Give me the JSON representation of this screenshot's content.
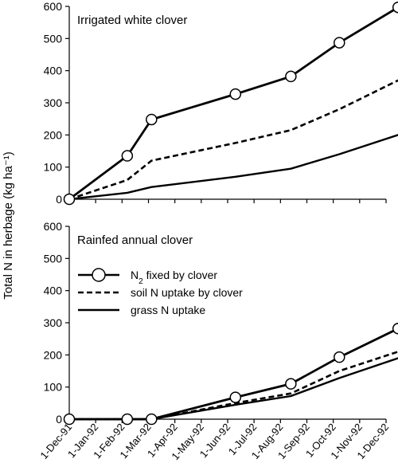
{
  "chart_data": [
    {
      "type": "line",
      "title": "Irrigated white clover",
      "ylabel": "Total N in herbage (kg ha⁻¹)",
      "ylim": [
        0,
        600
      ],
      "yticks": [
        0,
        100,
        200,
        300,
        400,
        500,
        600
      ],
      "xlim": [
        "1-Dec-91",
        "1-Dec-92"
      ],
      "grid": false,
      "series": [
        {
          "name": "N2 fixed by clover",
          "style": "solid-circle",
          "points": [
            {
              "date": "1991-12-01",
              "value": 0
            },
            {
              "date": "1992-02-06",
              "value": 135
            },
            {
              "date": "1992-03-05",
              "value": 248
            },
            {
              "date": "1992-06-10",
              "value": 327
            },
            {
              "date": "1992-08-13",
              "value": 382
            },
            {
              "date": "1992-10-08",
              "value": 487
            },
            {
              "date": "1992-12-15",
              "value": 597
            }
          ]
        },
        {
          "name": "soil N uptake by clover",
          "style": "dashed",
          "points": [
            {
              "date": "1991-12-01",
              "value": 0
            },
            {
              "date": "1992-02-06",
              "value": 60
            },
            {
              "date": "1992-03-05",
              "value": 120
            },
            {
              "date": "1992-06-10",
              "value": 175
            },
            {
              "date": "1992-08-13",
              "value": 215
            },
            {
              "date": "1992-10-08",
              "value": 280
            },
            {
              "date": "1992-12-15",
              "value": 370
            }
          ]
        },
        {
          "name": "grass N uptake",
          "style": "solid",
          "points": [
            {
              "date": "1991-12-01",
              "value": 0
            },
            {
              "date": "1992-02-06",
              "value": 20
            },
            {
              "date": "1992-03-05",
              "value": 38
            },
            {
              "date": "1992-06-10",
              "value": 70
            },
            {
              "date": "1992-08-13",
              "value": 95
            },
            {
              "date": "1992-10-08",
              "value": 140
            },
            {
              "date": "1992-12-15",
              "value": 200
            }
          ]
        }
      ]
    },
    {
      "type": "line",
      "title": "Rainfed annual clover",
      "ylabel": "Total N in herbage (kg ha⁻¹)",
      "ylim": [
        0,
        600
      ],
      "yticks": [
        0,
        100,
        200,
        300,
        400,
        500,
        600
      ],
      "xlim": [
        "1-Dec-91",
        "1-Dec-92"
      ],
      "xticks": [
        "1-Dec-91",
        "1-Jan-92",
        "1-Feb-92",
        "1-Mar-92",
        "1-Apr-92",
        "1-May-92",
        "1-Jun-92",
        "1-Jul-92",
        "1-Aug-92",
        "1-Sep-92",
        "1-Oct-92",
        "1-Nov-92",
        "1-Dec-92"
      ],
      "grid": false,
      "legend": {
        "placement": "center-left",
        "entries": [
          {
            "label_main": "N",
            "label_sub": "2",
            "label_rest": " fixed by clover",
            "style": "solid-circle"
          },
          {
            "label_main": "soil N uptake by clover",
            "style": "dashed"
          },
          {
            "label_main": "grass N uptake",
            "style": "solid"
          }
        ]
      },
      "series": [
        {
          "name": "N2 fixed by clover",
          "style": "solid-circle",
          "points": [
            {
              "date": "1991-12-01",
              "value": 0
            },
            {
              "date": "1992-02-06",
              "value": 0
            },
            {
              "date": "1992-03-05",
              "value": 0
            },
            {
              "date": "1992-06-10",
              "value": 68
            },
            {
              "date": "1992-08-13",
              "value": 110
            },
            {
              "date": "1992-10-08",
              "value": 193
            },
            {
              "date": "1992-12-15",
              "value": 282
            }
          ]
        },
        {
          "name": "soil N uptake by clover",
          "style": "dashed",
          "points": [
            {
              "date": "1991-12-01",
              "value": 0
            },
            {
              "date": "1992-02-06",
              "value": 0
            },
            {
              "date": "1992-03-05",
              "value": 0
            },
            {
              "date": "1992-06-10",
              "value": 50
            },
            {
              "date": "1992-08-13",
              "value": 80
            },
            {
              "date": "1992-10-08",
              "value": 150
            },
            {
              "date": "1992-12-15",
              "value": 210
            }
          ]
        },
        {
          "name": "grass N uptake",
          "style": "solid",
          "points": [
            {
              "date": "1991-12-01",
              "value": 0
            },
            {
              "date": "1992-02-06",
              "value": 0
            },
            {
              "date": "1992-03-05",
              "value": 0
            },
            {
              "date": "1992-06-10",
              "value": 45
            },
            {
              "date": "1992-08-13",
              "value": 72
            },
            {
              "date": "1992-10-08",
              "value": 128
            },
            {
              "date": "1992-12-15",
              "value": 190
            }
          ]
        }
      ]
    }
  ]
}
